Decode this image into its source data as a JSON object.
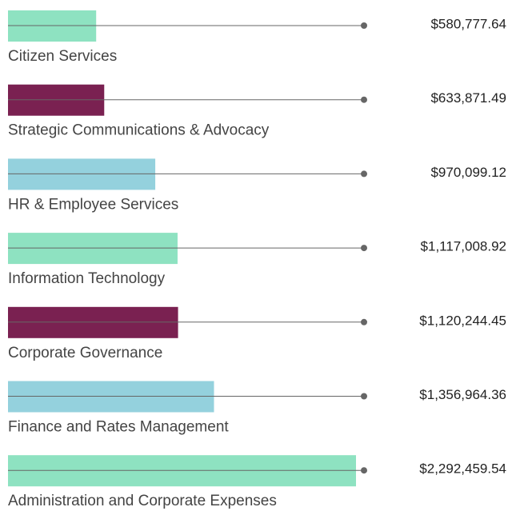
{
  "chart_data": {
    "type": "bar",
    "orientation": "horizontal",
    "categories": [
      "Citizen Services",
      "Strategic Communications & Advocacy",
      "HR & Employee Services",
      "Information Technology",
      "Corporate Governance",
      "Finance and Rates Management",
      "Administration and Corporate Expenses"
    ],
    "values": [
      580777.64,
      633871.49,
      970099.12,
      1117008.92,
      1120244.45,
      1356964.36,
      2292459.54
    ],
    "value_labels": [
      "$580,777.64",
      "$633,871.49",
      "$970,099.12",
      "$1,117,008.92",
      "$1,120,244.45",
      "$1,356,964.36",
      "$2,292,459.54"
    ],
    "colors": [
      "#8ee2c1",
      "#7a2151",
      "#94d1dd",
      "#8ee2c1",
      "#7a2151",
      "#94d1dd",
      "#8ee2c1"
    ]
  }
}
